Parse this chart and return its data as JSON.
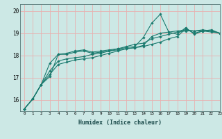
{
  "xlabel": "Humidex (Indice chaleur)",
  "ylabel": "",
  "bg_color": "#cce8e5",
  "grid_color": "#e8b0b0",
  "line_color": "#1a7a6e",
  "xlim": [
    -0.5,
    23
  ],
  "ylim": [
    15.5,
    20.3
  ],
  "xticks": [
    0,
    1,
    2,
    3,
    4,
    5,
    6,
    7,
    8,
    9,
    10,
    11,
    12,
    13,
    14,
    15,
    16,
    17,
    18,
    19,
    20,
    21,
    22,
    23
  ],
  "yticks": [
    16,
    17,
    18,
    19,
    20
  ],
  "lines": [
    [
      15.6,
      16.05,
      16.7,
      17.65,
      18.05,
      18.05,
      18.15,
      18.2,
      18.1,
      18.15,
      18.2,
      18.25,
      18.3,
      18.35,
      18.4,
      18.5,
      18.6,
      18.75,
      18.85,
      19.2,
      19.0,
      19.1,
      19.1,
      19.0
    ],
    [
      15.6,
      16.05,
      16.7,
      17.3,
      17.75,
      17.85,
      17.9,
      17.95,
      18.05,
      18.1,
      18.2,
      18.3,
      18.4,
      18.5,
      18.55,
      18.75,
      18.85,
      18.95,
      19.05,
      19.1,
      19.1,
      19.15,
      19.1,
      19.0
    ],
    [
      15.6,
      16.05,
      16.7,
      17.15,
      17.6,
      17.7,
      17.8,
      17.85,
      17.9,
      18.0,
      18.1,
      18.2,
      18.3,
      18.35,
      18.45,
      18.85,
      19.0,
      19.05,
      19.1,
      19.15,
      19.1,
      19.1,
      19.05,
      19.0
    ],
    [
      15.6,
      16.05,
      16.7,
      17.05,
      18.05,
      18.1,
      18.2,
      18.25,
      18.15,
      18.2,
      18.25,
      18.3,
      18.35,
      18.4,
      18.8,
      19.45,
      19.85,
      19.05,
      18.95,
      19.25,
      18.95,
      19.1,
      19.15,
      19.0
    ]
  ]
}
